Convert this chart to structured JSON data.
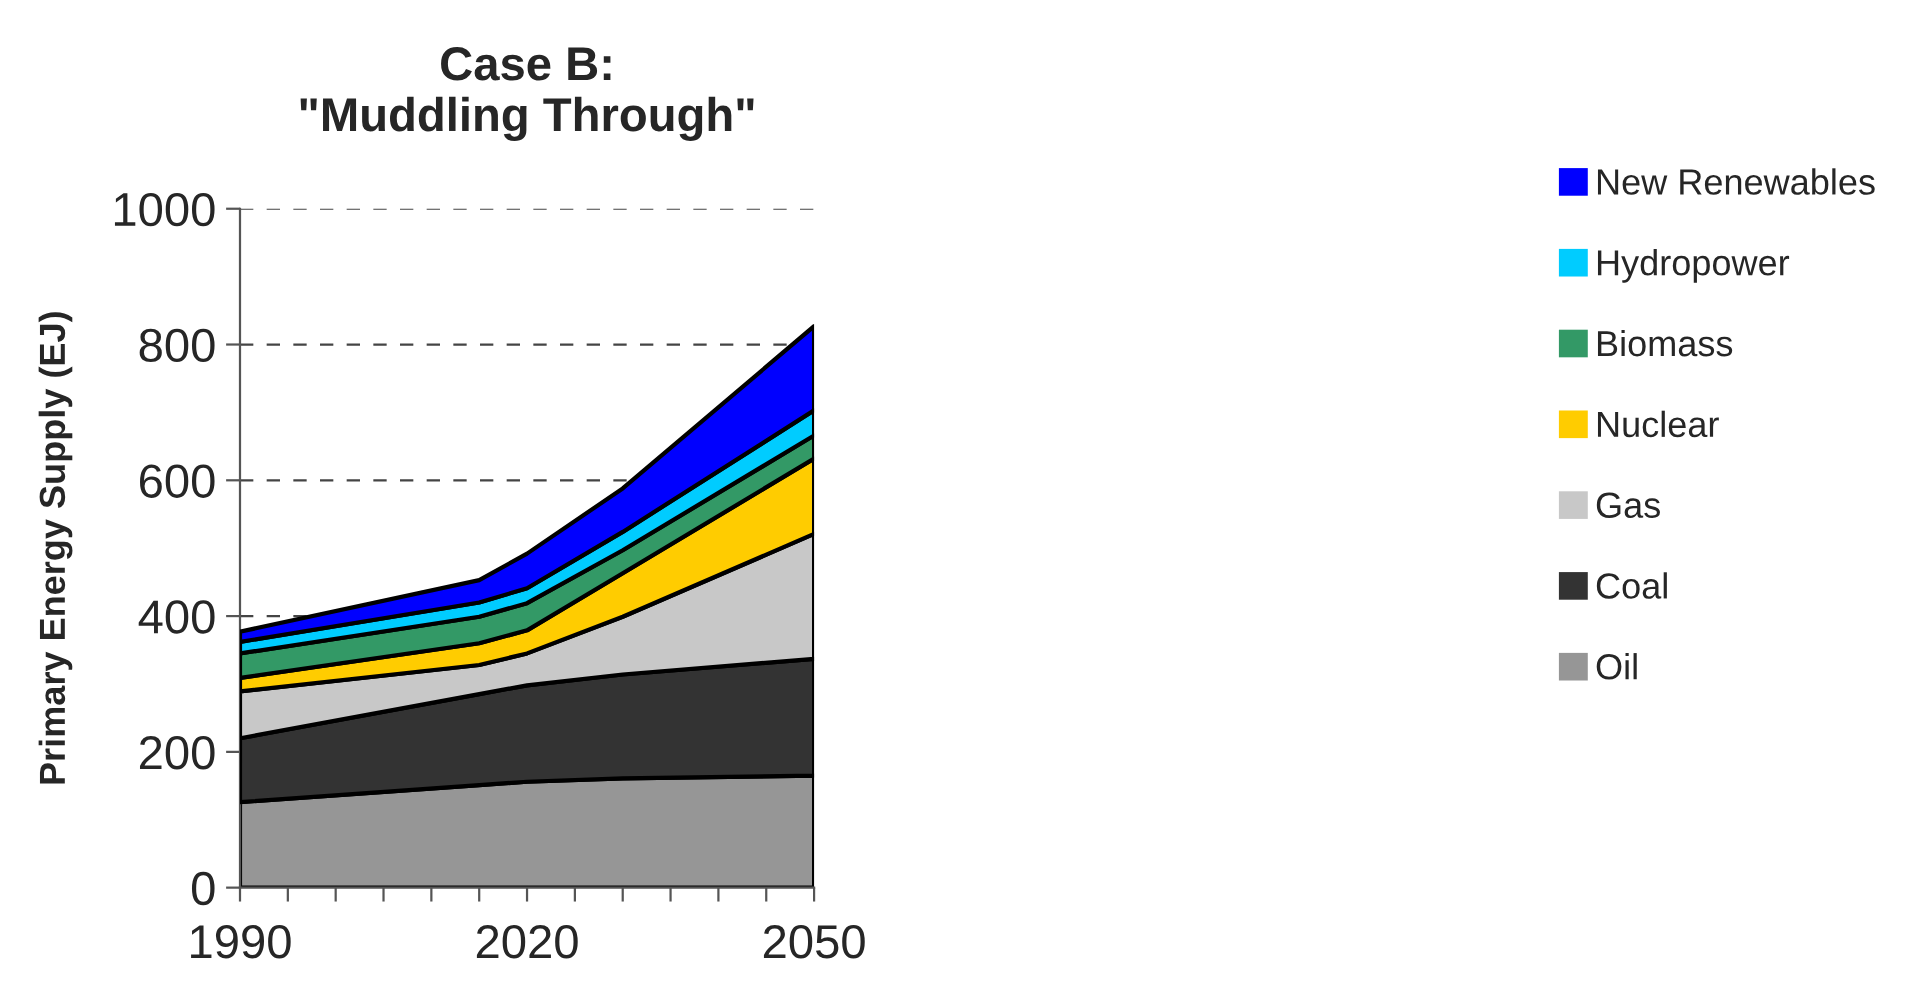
{
  "chart_data": {
    "type": "area",
    "stacked": true,
    "title": "Case B:\n\"Muddling Through\"",
    "ylabel": "Primary Energy Supply (EJ)",
    "x": [
      1990,
      2015,
      2020,
      2030,
      2050
    ],
    "series": [
      {
        "name": "Oil",
        "color": "#969696",
        "values": [
          126,
          151,
          156,
          161,
          165
        ]
      },
      {
        "name": "Coal",
        "color": "#333333",
        "values": [
          94,
          134,
          142,
          153,
          172
        ]
      },
      {
        "name": "Gas",
        "color": "#c8c8c8",
        "values": [
          69,
          43,
          47,
          85,
          184
        ]
      },
      {
        "name": "Nuclear",
        "color": "#ffcc00",
        "values": [
          20,
          32,
          34,
          64,
          111
        ]
      },
      {
        "name": "Biomass",
        "color": "#339966",
        "values": [
          36,
          39,
          40,
          34,
          34
        ]
      },
      {
        "name": "Hydropower",
        "color": "#00ccff",
        "values": [
          17,
          21,
          22,
          27,
          37
        ]
      },
      {
        "name": "New Renewables",
        "color": "#0000ff",
        "values": [
          15,
          33,
          51,
          64,
          124
        ]
      }
    ],
    "xlim": [
      1990,
      2050
    ],
    "xticks": [
      1990,
      {
        "value": 1995,
        "label": null
      },
      {
        "value": 2000,
        "label": null
      },
      {
        "value": 2005,
        "label": null
      },
      {
        "value": 2010,
        "label": null
      },
      {
        "value": 2015,
        "label": null
      },
      2020,
      {
        "value": 2025,
        "label": null
      },
      {
        "value": 2030,
        "label": null
      },
      {
        "value": 2035,
        "label": null
      },
      {
        "value": 2040,
        "label": null
      },
      {
        "value": 2045,
        "label": null
      },
      2050
    ],
    "ylim": [
      0,
      1000
    ],
    "yticks": [
      0,
      200,
      400,
      600,
      800,
      1000
    ],
    "grid": "y",
    "legend": "right"
  }
}
